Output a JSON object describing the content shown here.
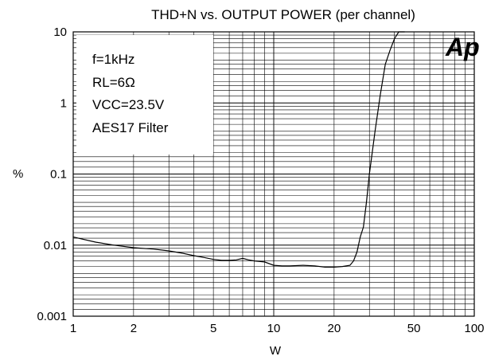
{
  "chart_data": {
    "type": "line",
    "title": "THD+N vs. OUTPUT POWER (per channel)",
    "xlabel": "W",
    "ylabel": "%",
    "x_scale": "log",
    "y_scale": "log",
    "xlim": [
      1,
      100
    ],
    "ylim": [
      0.001,
      10
    ],
    "grid": true,
    "x_ticks": [
      {
        "value": 1,
        "label": "1"
      },
      {
        "value": 2,
        "label": "2"
      },
      {
        "value": 5,
        "label": "5"
      },
      {
        "value": 10,
        "label": "10"
      },
      {
        "value": 20,
        "label": "20"
      },
      {
        "value": 50,
        "label": "50"
      },
      {
        "value": 100,
        "label": "100"
      }
    ],
    "y_ticks": [
      {
        "value": 0.001,
        "label": "0.001"
      },
      {
        "value": 0.01,
        "label": "0.01"
      },
      {
        "value": 0.1,
        "label": "0.1"
      },
      {
        "value": 1,
        "label": "1"
      },
      {
        "value": 10,
        "label": "10"
      }
    ],
    "annotation_lines": [
      "f=1kHz",
      "RL=6Ω",
      "VCC=23.5V",
      "AES17 Filter"
    ],
    "logo_text": "Ap",
    "series": [
      {
        "x": [
          1,
          1.3,
          1.6,
          2,
          2.5,
          3,
          3.5,
          4,
          4.5,
          5,
          5.5,
          6,
          6.5,
          7,
          7.5,
          8,
          9,
          10,
          11,
          12,
          14,
          16,
          18,
          20,
          22,
          24,
          25,
          26,
          27,
          28,
          29,
          30,
          32,
          34,
          36,
          38,
          40,
          42,
          45
        ],
        "y": [
          0.013,
          0.011,
          0.01,
          0.0092,
          0.0088,
          0.0083,
          0.0077,
          0.0071,
          0.0067,
          0.0063,
          0.0061,
          0.0061,
          0.0062,
          0.0065,
          0.0062,
          0.006,
          0.0058,
          0.0052,
          0.0051,
          0.0051,
          0.0052,
          0.0051,
          0.0049,
          0.0049,
          0.005,
          0.0052,
          0.006,
          0.008,
          0.013,
          0.018,
          0.04,
          0.1,
          0.4,
          1.3,
          3.5,
          5.5,
          8,
          10,
          13
        ]
      }
    ]
  }
}
